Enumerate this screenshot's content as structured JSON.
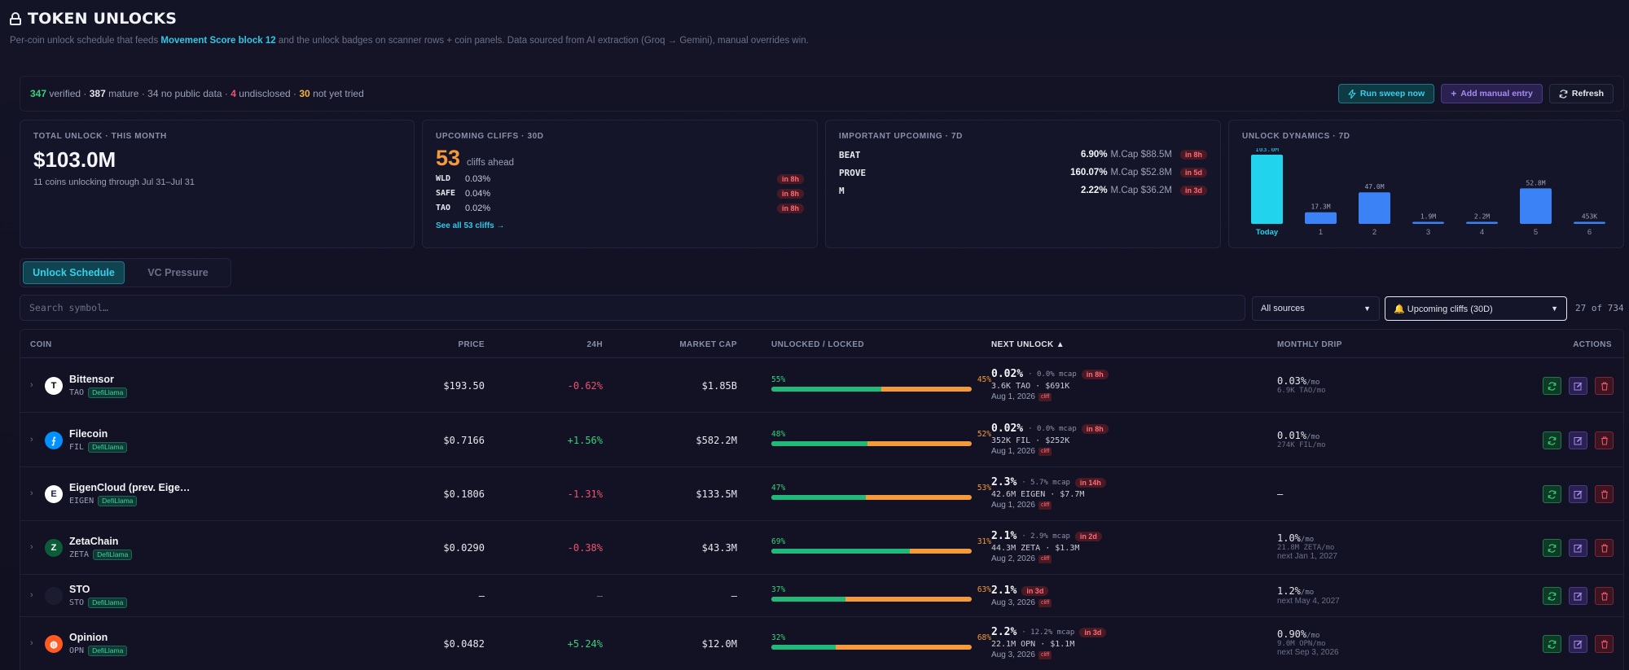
{
  "header": {
    "title": "TOKEN UNLOCKS",
    "subtitle_pre": "Per-coin unlock schedule that feeds ",
    "subtitle_hl": "Movement Score block 12",
    "subtitle_post": " and the unlock badges on scanner rows + coin panels. Data sourced from AI extraction (Groq → Gemini), manual overrides win."
  },
  "status": {
    "verified": "347",
    "verified_lbl": "verified",
    "mature": "387",
    "mature_lbl": "mature",
    "nopublic": "34 no public data",
    "undisclosed": "4",
    "undisclosed_lbl": "undisclosed",
    "nottried": "30",
    "nottried_lbl": "not yet tried",
    "sep": "·",
    "sweep_label": "Run sweep now",
    "add_label": "Add manual entry",
    "refresh_label": "Refresh"
  },
  "cards": {
    "total": {
      "label": "TOTAL UNLOCK · THIS MONTH",
      "value": "$103.0M",
      "sub": "11 coins unlocking through Jul 31–Jul 31"
    },
    "cliffs": {
      "label": "UPCOMING CLIFFS · 30D",
      "count": "53",
      "count_lbl": "cliffs ahead",
      "items": [
        {
          "sym": "WLD",
          "pct": "0.03%",
          "when": "in 8h"
        },
        {
          "sym": "SAFE",
          "pct": "0.04%",
          "when": "in 8h"
        },
        {
          "sym": "TAO",
          "pct": "0.02%",
          "when": "in 8h"
        }
      ],
      "link": "See all 53 cliffs →"
    },
    "important": {
      "label": "IMPORTANT UPCOMING · 7D",
      "items": [
        {
          "sym": "BEAT",
          "pct": "6.90%",
          "mcap": "M.Cap $88.5M",
          "when": "in 8h"
        },
        {
          "sym": "PROVE",
          "pct": "160.07%",
          "mcap": "M.Cap $52.8M",
          "when": "in 5d"
        },
        {
          "sym": "M",
          "pct": "2.22%",
          "mcap": "M.Cap $36.2M",
          "when": "in 3d"
        }
      ]
    },
    "dynamics": {
      "label": "UNLOCK DYNAMICS · 7D",
      "bars": [
        {
          "day": "Today",
          "value": 103.0,
          "label": "103.0M"
        },
        {
          "day": "1",
          "value": 17.3,
          "label": "17.3M"
        },
        {
          "day": "2",
          "value": 47.0,
          "label": "47.0M"
        },
        {
          "day": "3",
          "value": 1.9,
          "label": "1.9M"
        },
        {
          "day": "4",
          "value": 2.2,
          "label": "2.2M"
        },
        {
          "day": "5",
          "value": 52.8,
          "label": "52.8M"
        },
        {
          "day": "6",
          "value": 0.453,
          "label": "453K"
        }
      ],
      "colors": {
        "today": "#22d3ee",
        "other": "#3b82f6"
      }
    }
  },
  "tabs": {
    "schedule": "Unlock Schedule",
    "pressure": "VC Pressure"
  },
  "filters": {
    "search_placeholder": "Search symbol…",
    "source": "All sources",
    "cliff_filter": "🔔 Upcoming cliffs (30D)",
    "count": "27 of 734"
  },
  "table": {
    "headers": {
      "coin": "COIN",
      "price": "PRICE",
      "change": "24H",
      "mcap": "MARKET CAP",
      "unlocked": "UNLOCKED / LOCKED",
      "next": "NEXT UNLOCK ▲",
      "drip": "MONTHLY DRIP",
      "actions": "ACTIONS"
    },
    "rows": [
      {
        "name": "Bittensor",
        "sym": "TAO",
        "source": "DefiLlama",
        "icon": "T",
        "icon_bg": "#ffffff",
        "icon_fg": "#000000",
        "price": "$193.50",
        "change": "-0.62%",
        "dir": "neg",
        "mcap": "$1.85B",
        "unlocked": 55,
        "unlocked_lbl": "55%",
        "locked_lbl": "45%",
        "nu_pct": "0.02%",
        "nu_mcap": "· 0.0% mcap",
        "nu_when": "in 8h",
        "nu_amt": "3.6K TAO · $691K",
        "nu_date": "Aug 1, 2026",
        "cliff": "cliff",
        "md": "0.03%",
        "md_unit": "/mo",
        "md_sub": "6.9K TAO/mo",
        "md_next": ""
      },
      {
        "name": "Filecoin",
        "sym": "FIL",
        "source": "DefiLlama",
        "icon": "⨍",
        "icon_bg": "#0090ff",
        "icon_fg": "#ffffff",
        "price": "$0.7166",
        "change": "+1.56%",
        "dir": "pos",
        "mcap": "$582.2M",
        "unlocked": 48,
        "unlocked_lbl": "48%",
        "locked_lbl": "52%",
        "nu_pct": "0.02%",
        "nu_mcap": "· 0.0% mcap",
        "nu_when": "in 8h",
        "nu_amt": "352K FIL · $252K",
        "nu_date": "Aug 1, 2026",
        "cliff": "cliff",
        "md": "0.01%",
        "md_unit": "/mo",
        "md_sub": "274K FIL/mo",
        "md_next": ""
      },
      {
        "name": "EigenCloud (prev. Eige…",
        "sym": "EIGEN",
        "source": "DefiLlama",
        "icon": "E",
        "icon_bg": "#ffffff",
        "icon_fg": "#1a1a60",
        "price": "$0.1806",
        "change": "-1.31%",
        "dir": "neg",
        "mcap": "$133.5M",
        "unlocked": 47,
        "unlocked_lbl": "47%",
        "locked_lbl": "53%",
        "nu_pct": "2.3%",
        "nu_mcap": "· 5.7% mcap",
        "nu_when": "in 14h",
        "nu_amt": "42.6M EIGEN · $7.7M",
        "nu_date": "Aug 1, 2026",
        "cliff": "cliff",
        "md": "—",
        "md_unit": "",
        "md_sub": "",
        "md_next": ""
      },
      {
        "name": "ZetaChain",
        "sym": "ZETA",
        "source": "DefiLlama",
        "icon": "Z",
        "icon_bg": "#0c5c3a",
        "icon_fg": "#ffffff",
        "price": "$0.0290",
        "change": "-0.38%",
        "dir": "neg",
        "mcap": "$43.3M",
        "unlocked": 69,
        "unlocked_lbl": "69%",
        "locked_lbl": "31%",
        "nu_pct": "2.1%",
        "nu_mcap": "· 2.9% mcap",
        "nu_when": "in 2d",
        "nu_amt": "44.3M ZETA · $1.3M",
        "nu_date": "Aug 2, 2026",
        "cliff": "cliff",
        "md": "1.0%",
        "md_unit": "/mo",
        "md_sub": "21.8M ZETA/mo",
        "md_next": "next Jan 1, 2027"
      },
      {
        "name": "STO",
        "sym": "STO",
        "source": "DefiLlama",
        "icon": "",
        "icon_bg": "#1c1c30",
        "icon_fg": "#ffffff",
        "price": "—",
        "change": "—",
        "dir": "dim",
        "mcap": "—",
        "unlocked": 37,
        "unlocked_lbl": "37%",
        "locked_lbl": "63%",
        "nu_pct": "2.1%",
        "nu_mcap": "",
        "nu_when": "in 3d",
        "nu_amt": "",
        "nu_date": "Aug 3, 2026",
        "cliff": "cliff",
        "md": "1.2%",
        "md_unit": "/mo",
        "md_sub": "",
        "md_next": "next May 4, 2027"
      },
      {
        "name": "Opinion",
        "sym": "OPN",
        "source": "DefiLlama",
        "icon": "◍",
        "icon_bg": "#ff5a1f",
        "icon_fg": "#ffffff",
        "price": "$0.0482",
        "change": "+5.24%",
        "dir": "pos",
        "mcap": "$12.0M",
        "unlocked": 32,
        "unlocked_lbl": "32%",
        "locked_lbl": "68%",
        "nu_pct": "2.2%",
        "nu_mcap": "· 12.2% mcap",
        "nu_when": "in 3d",
        "nu_amt": "22.1M OPN · $1.1M",
        "nu_date": "Aug 3, 2026",
        "cliff": "cliff",
        "md": "0.90%",
        "md_unit": "/mo",
        "md_sub": "9.0M OPN/mo",
        "md_next": "next Sep 3, 2026"
      }
    ]
  }
}
